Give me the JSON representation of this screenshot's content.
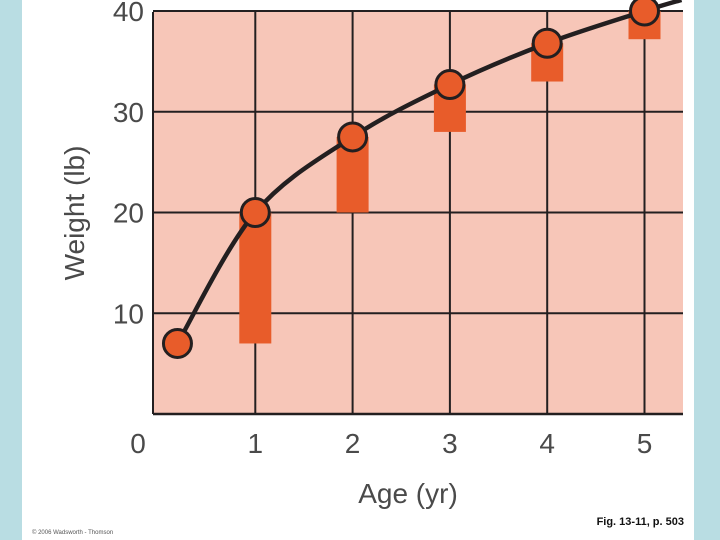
{
  "chart_data": {
    "type": "line",
    "xlabel": "Age (yr)",
    "ylabel": "Weight (lb)",
    "xlim": [
      0,
      5.3
    ],
    "ylim": [
      0,
      40
    ],
    "x_ticks": [
      "0",
      "1",
      "2",
      "3",
      "4",
      "5"
    ],
    "y_ticks": [
      "10",
      "20",
      "30",
      "40"
    ],
    "grid": true,
    "series": [
      {
        "name": "",
        "x": [
          0.2,
          1,
          2,
          3,
          4,
          5
        ],
        "y": [
          7,
          20,
          27.5,
          32.7,
          36.8,
          40
        ]
      }
    ],
    "yearly_gain_bars": [
      {
        "x": 1,
        "from": 7,
        "to": 20
      },
      {
        "x": 2,
        "from": 20,
        "to": 27.5
      },
      {
        "x": 3,
        "from": 28,
        "to": 32.7
      },
      {
        "x": 4,
        "from": 33,
        "to": 36.8
      },
      {
        "x": 5,
        "from": 37.2,
        "to": 40
      }
    ],
    "colors": {
      "plot_bg": "#f7c6b8",
      "bar": "#e85c2a",
      "marker": "#e85c2a",
      "line": "#231f20",
      "grid": "#231f20"
    }
  },
  "caption": "Fig. 13-11, p. 503",
  "credit": "© 2006 Wadsworth - Thomson"
}
